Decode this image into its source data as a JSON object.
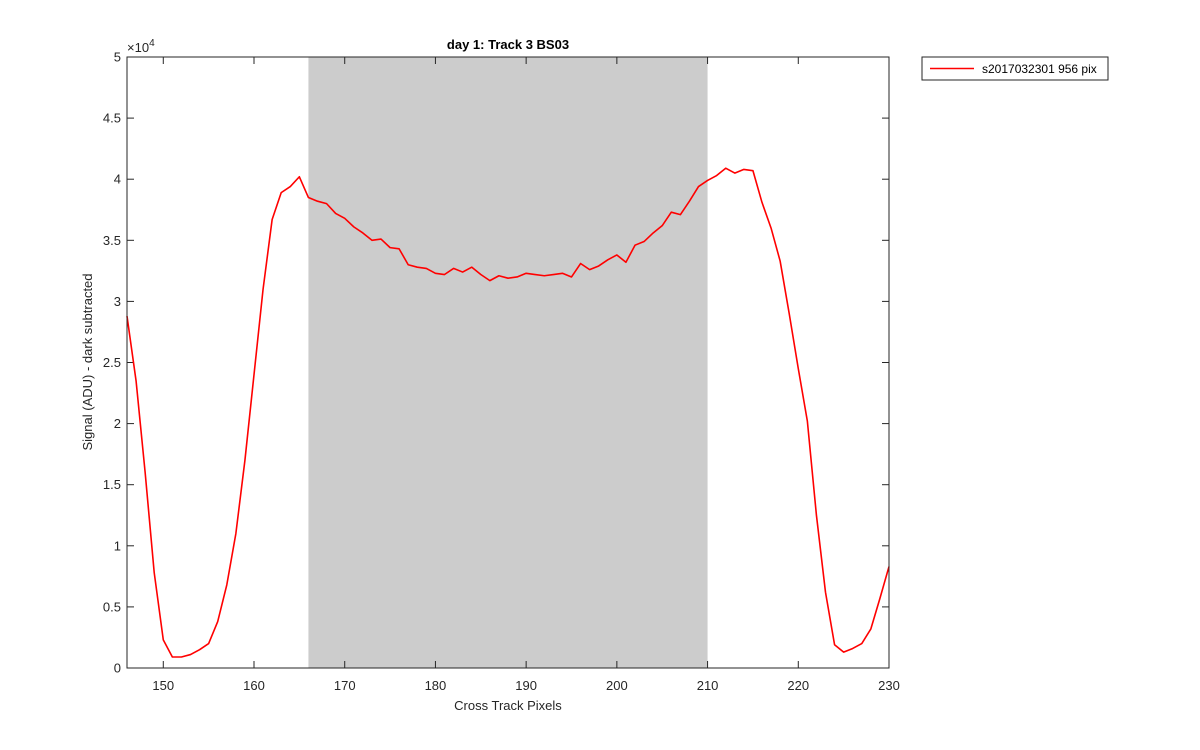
{
  "chart_data": {
    "type": "line",
    "title": "day 1: Track 3  BS03",
    "xlabel": "Cross Track Pixels",
    "ylabel": "Signal (ADU) - dark subtracted",
    "y_exponent_label": "×10",
    "y_exponent_power": "4",
    "xlim": [
      146,
      230
    ],
    "ylim": [
      0,
      50000
    ],
    "x_ticks": [
      150,
      160,
      170,
      180,
      190,
      200,
      210,
      220,
      230
    ],
    "x_tick_labels": [
      "150",
      "160",
      "170",
      "180",
      "190",
      "200",
      "210",
      "220",
      "230"
    ],
    "y_ticks": [
      0,
      5000,
      10000,
      15000,
      20000,
      25000,
      30000,
      35000,
      40000,
      45000,
      50000
    ],
    "y_tick_labels": [
      "0",
      "0.5",
      "1",
      "1.5",
      "2",
      "2.5",
      "3",
      "3.5",
      "4",
      "4.5",
      "5"
    ],
    "grid": false,
    "legend_position": "outside-top-right",
    "shaded_region": {
      "x": [
        166,
        210
      ],
      "color": "#cccccc"
    },
    "series": [
      {
        "name": "s2017032301 956 pix",
        "color": "#ff0000",
        "x": [
          146,
          147,
          148,
          149,
          150,
          151,
          152,
          153,
          154,
          155,
          156,
          157,
          158,
          159,
          160,
          161,
          162,
          163,
          164,
          165,
          166,
          167,
          168,
          169,
          170,
          171,
          172,
          173,
          174,
          175,
          176,
          177,
          178,
          179,
          180,
          181,
          182,
          183,
          184,
          185,
          186,
          187,
          188,
          189,
          190,
          191,
          192,
          193,
          194,
          195,
          196,
          197,
          198,
          199,
          200,
          201,
          202,
          203,
          204,
          205,
          206,
          207,
          208,
          209,
          210,
          211,
          212,
          213,
          214,
          215,
          216,
          217,
          218,
          219,
          220,
          221,
          222,
          223,
          224,
          225,
          226,
          227,
          228,
          229,
          230
        ],
        "y": [
          28800,
          23500,
          16000,
          7800,
          2300,
          900,
          900,
          1100,
          1500,
          2000,
          3800,
          6800,
          11000,
          17000,
          24000,
          31000,
          36700,
          38900,
          39400,
          40200,
          38500,
          38200,
          38000,
          37200,
          36800,
          36100,
          35600,
          35000,
          35100,
          34400,
          34300,
          33000,
          32800,
          32700,
          32300,
          32200,
          32700,
          32400,
          32800,
          32200,
          31700,
          32100,
          31900,
          32000,
          32300,
          32200,
          32100,
          32200,
          32300,
          32000,
          33100,
          32600,
          32900,
          33400,
          33800,
          33200,
          34600,
          34900,
          35600,
          36200,
          37300,
          37100,
          38200,
          39400,
          39900,
          40300,
          40900,
          40500,
          40800,
          40700,
          38100,
          36000,
          33300,
          29000,
          24500,
          20200,
          12500,
          6200,
          1900,
          1300,
          1600,
          2000,
          3200,
          5700,
          8300
        ]
      }
    ]
  }
}
